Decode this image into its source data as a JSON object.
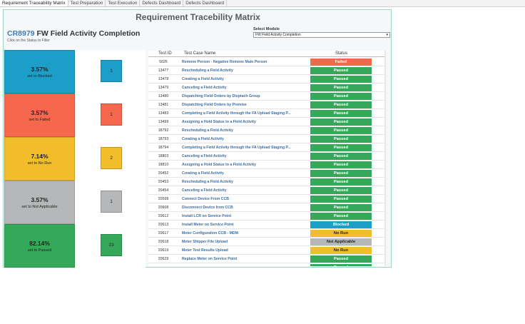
{
  "tabs": [
    {
      "label": "Requirement Traceability Matrix",
      "active": true
    },
    {
      "label": "Test Preparation",
      "active": false
    },
    {
      "label": "Test Execution",
      "active": false
    },
    {
      "label": "Defects Dashboard",
      "active": false
    },
    {
      "label": "Defects Dashboard",
      "active": false
    }
  ],
  "dashboard": {
    "title": "Requirement Tracebility Matrix",
    "cr_code": "CR8979",
    "cr_title": " FW Field Activity Completion",
    "hint": "Click on the Status to Filter",
    "module_label": "Select Module",
    "module_value": "FW Field Activity Completion"
  },
  "tiles": [
    {
      "pct": "3.57%",
      "label": "set to Blocked",
      "count": "1",
      "color": "#1b9fc9"
    },
    {
      "pct": "3.57%",
      "label": "set to Failed",
      "count": "1",
      "color": "#f5684e"
    },
    {
      "pct": "7.14%",
      "label": "set to No Run",
      "count": "2",
      "color": "#f2bd2a"
    },
    {
      "pct": "3.57%",
      "label": "set to Not Applicable",
      "count": "1",
      "color": "#b5b7b8"
    },
    {
      "pct": "82.14%",
      "label": "set to Passed",
      "count": "23",
      "color": "#36a85a"
    }
  ],
  "table": {
    "headers": {
      "id": "Test ID",
      "name": "Test Case Name",
      "status": "Status"
    },
    "status_colors": {
      "Failed": "#f5684e",
      "Passed": "#36a85a",
      "Blocked": "#1b9fc9",
      "No Run": "#f2bd2a",
      "Not Applicable": "#b5b7b8"
    },
    "rows": [
      {
        "id": "5026",
        "name": "Remove Person - Negative Remove Main Person",
        "status": "Failed"
      },
      {
        "id": "13477",
        "name": "Rescheduling a Field Activity",
        "status": "Passed"
      },
      {
        "id": "13478",
        "name": "Creating a Field Activity",
        "status": "Passed"
      },
      {
        "id": "13479",
        "name": "Canceling a Field Activity",
        "status": "Passed"
      },
      {
        "id": "13480",
        "name": "Dispatching Field Orders by Disptach Group",
        "status": "Passed"
      },
      {
        "id": "13481",
        "name": "Dispatching Field Orders by Premise",
        "status": "Passed"
      },
      {
        "id": "13483",
        "name": "Completing a Field Activity through the FA Upload Staging P...",
        "status": "Passed"
      },
      {
        "id": "13499",
        "name": "Assigning a Hold Status to a Field Activity",
        "status": "Passed"
      },
      {
        "id": "18792",
        "name": "Rescheduling a Field Activity",
        "status": "Passed"
      },
      {
        "id": "18793",
        "name": "Creating a Field Activity",
        "status": "Passed"
      },
      {
        "id": "18794",
        "name": "Completing a Field Activity through the FA Upload Staging P...",
        "status": "Passed"
      },
      {
        "id": "18803",
        "name": "Canceling a Field Activity",
        "status": "Passed"
      },
      {
        "id": "18810",
        "name": "Assigning a Hold Status to a Field Activity",
        "status": "Passed"
      },
      {
        "id": "20452",
        "name": "Creating a Field Activity",
        "status": "Passed"
      },
      {
        "id": "20453",
        "name": "Rescheduling a Field Activity",
        "status": "Passed"
      },
      {
        "id": "20454",
        "name": "Canceling a Field Activity",
        "status": "Passed"
      },
      {
        "id": "20598",
        "name": "Connect Device From CCB",
        "status": "Passed"
      },
      {
        "id": "20608",
        "name": "Disconnect Device from CCB",
        "status": "Passed"
      },
      {
        "id": "20612",
        "name": "Install LCR on Service Point",
        "status": "Passed"
      },
      {
        "id": "20613",
        "name": "Install Meter on Service Point",
        "status": "Blocked"
      },
      {
        "id": "20617",
        "name": "Meter Configuration CCB - MDM",
        "status": "No Run"
      },
      {
        "id": "20618",
        "name": "Meter Shipper File Upload",
        "status": "Not Applicable"
      },
      {
        "id": "20619",
        "name": "Meter Test Results Upload",
        "status": "No Run"
      },
      {
        "id": "20629",
        "name": "Replace Meter on Service Point",
        "status": "Passed"
      },
      {
        "id": "",
        "name": "",
        "status": "Passed"
      }
    ]
  }
}
